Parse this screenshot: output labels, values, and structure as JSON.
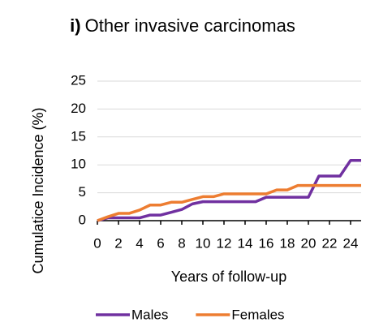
{
  "chart_data": {
    "type": "line",
    "title_label": "i)",
    "title": "Other invasive carcinomas",
    "x_label": "Years of follow-up",
    "y_label": "Cumulatice Incidence (%)",
    "x": [
      0,
      1,
      2,
      3,
      4,
      5,
      6,
      7,
      8,
      9,
      10,
      11,
      12,
      13,
      14,
      15,
      16,
      17,
      18,
      19,
      20,
      21,
      22,
      23,
      24,
      25
    ],
    "series": [
      {
        "name": "Males",
        "color": "#7030a0",
        "values": [
          0,
          0.5,
          0.5,
          0.5,
          0.5,
          1,
          1,
          1.5,
          2,
          3,
          3.4,
          3.4,
          3.4,
          3.4,
          3.4,
          3.4,
          4.2,
          4.2,
          4.2,
          4.2,
          4.2,
          8,
          8,
          8,
          10.8,
          10.8
        ]
      },
      {
        "name": "Females",
        "color": "#ed7d31",
        "values": [
          0,
          0.7,
          1.3,
          1.3,
          1.9,
          2.8,
          2.8,
          3.3,
          3.3,
          3.8,
          4.3,
          4.3,
          4.8,
          4.8,
          4.8,
          4.8,
          4.8,
          5.5,
          5.5,
          6.3,
          6.3,
          6.3,
          6.3,
          6.3,
          6.3,
          6.3
        ]
      }
    ],
    "xlim": [
      0,
      25
    ],
    "xticks": [
      0,
      2,
      4,
      6,
      8,
      10,
      12,
      14,
      16,
      18,
      20,
      22,
      24
    ],
    "ylim": [
      0,
      25
    ],
    "yticks": [
      0,
      5,
      10,
      15,
      20,
      25
    ],
    "grid": true,
    "legend": "bottom"
  }
}
